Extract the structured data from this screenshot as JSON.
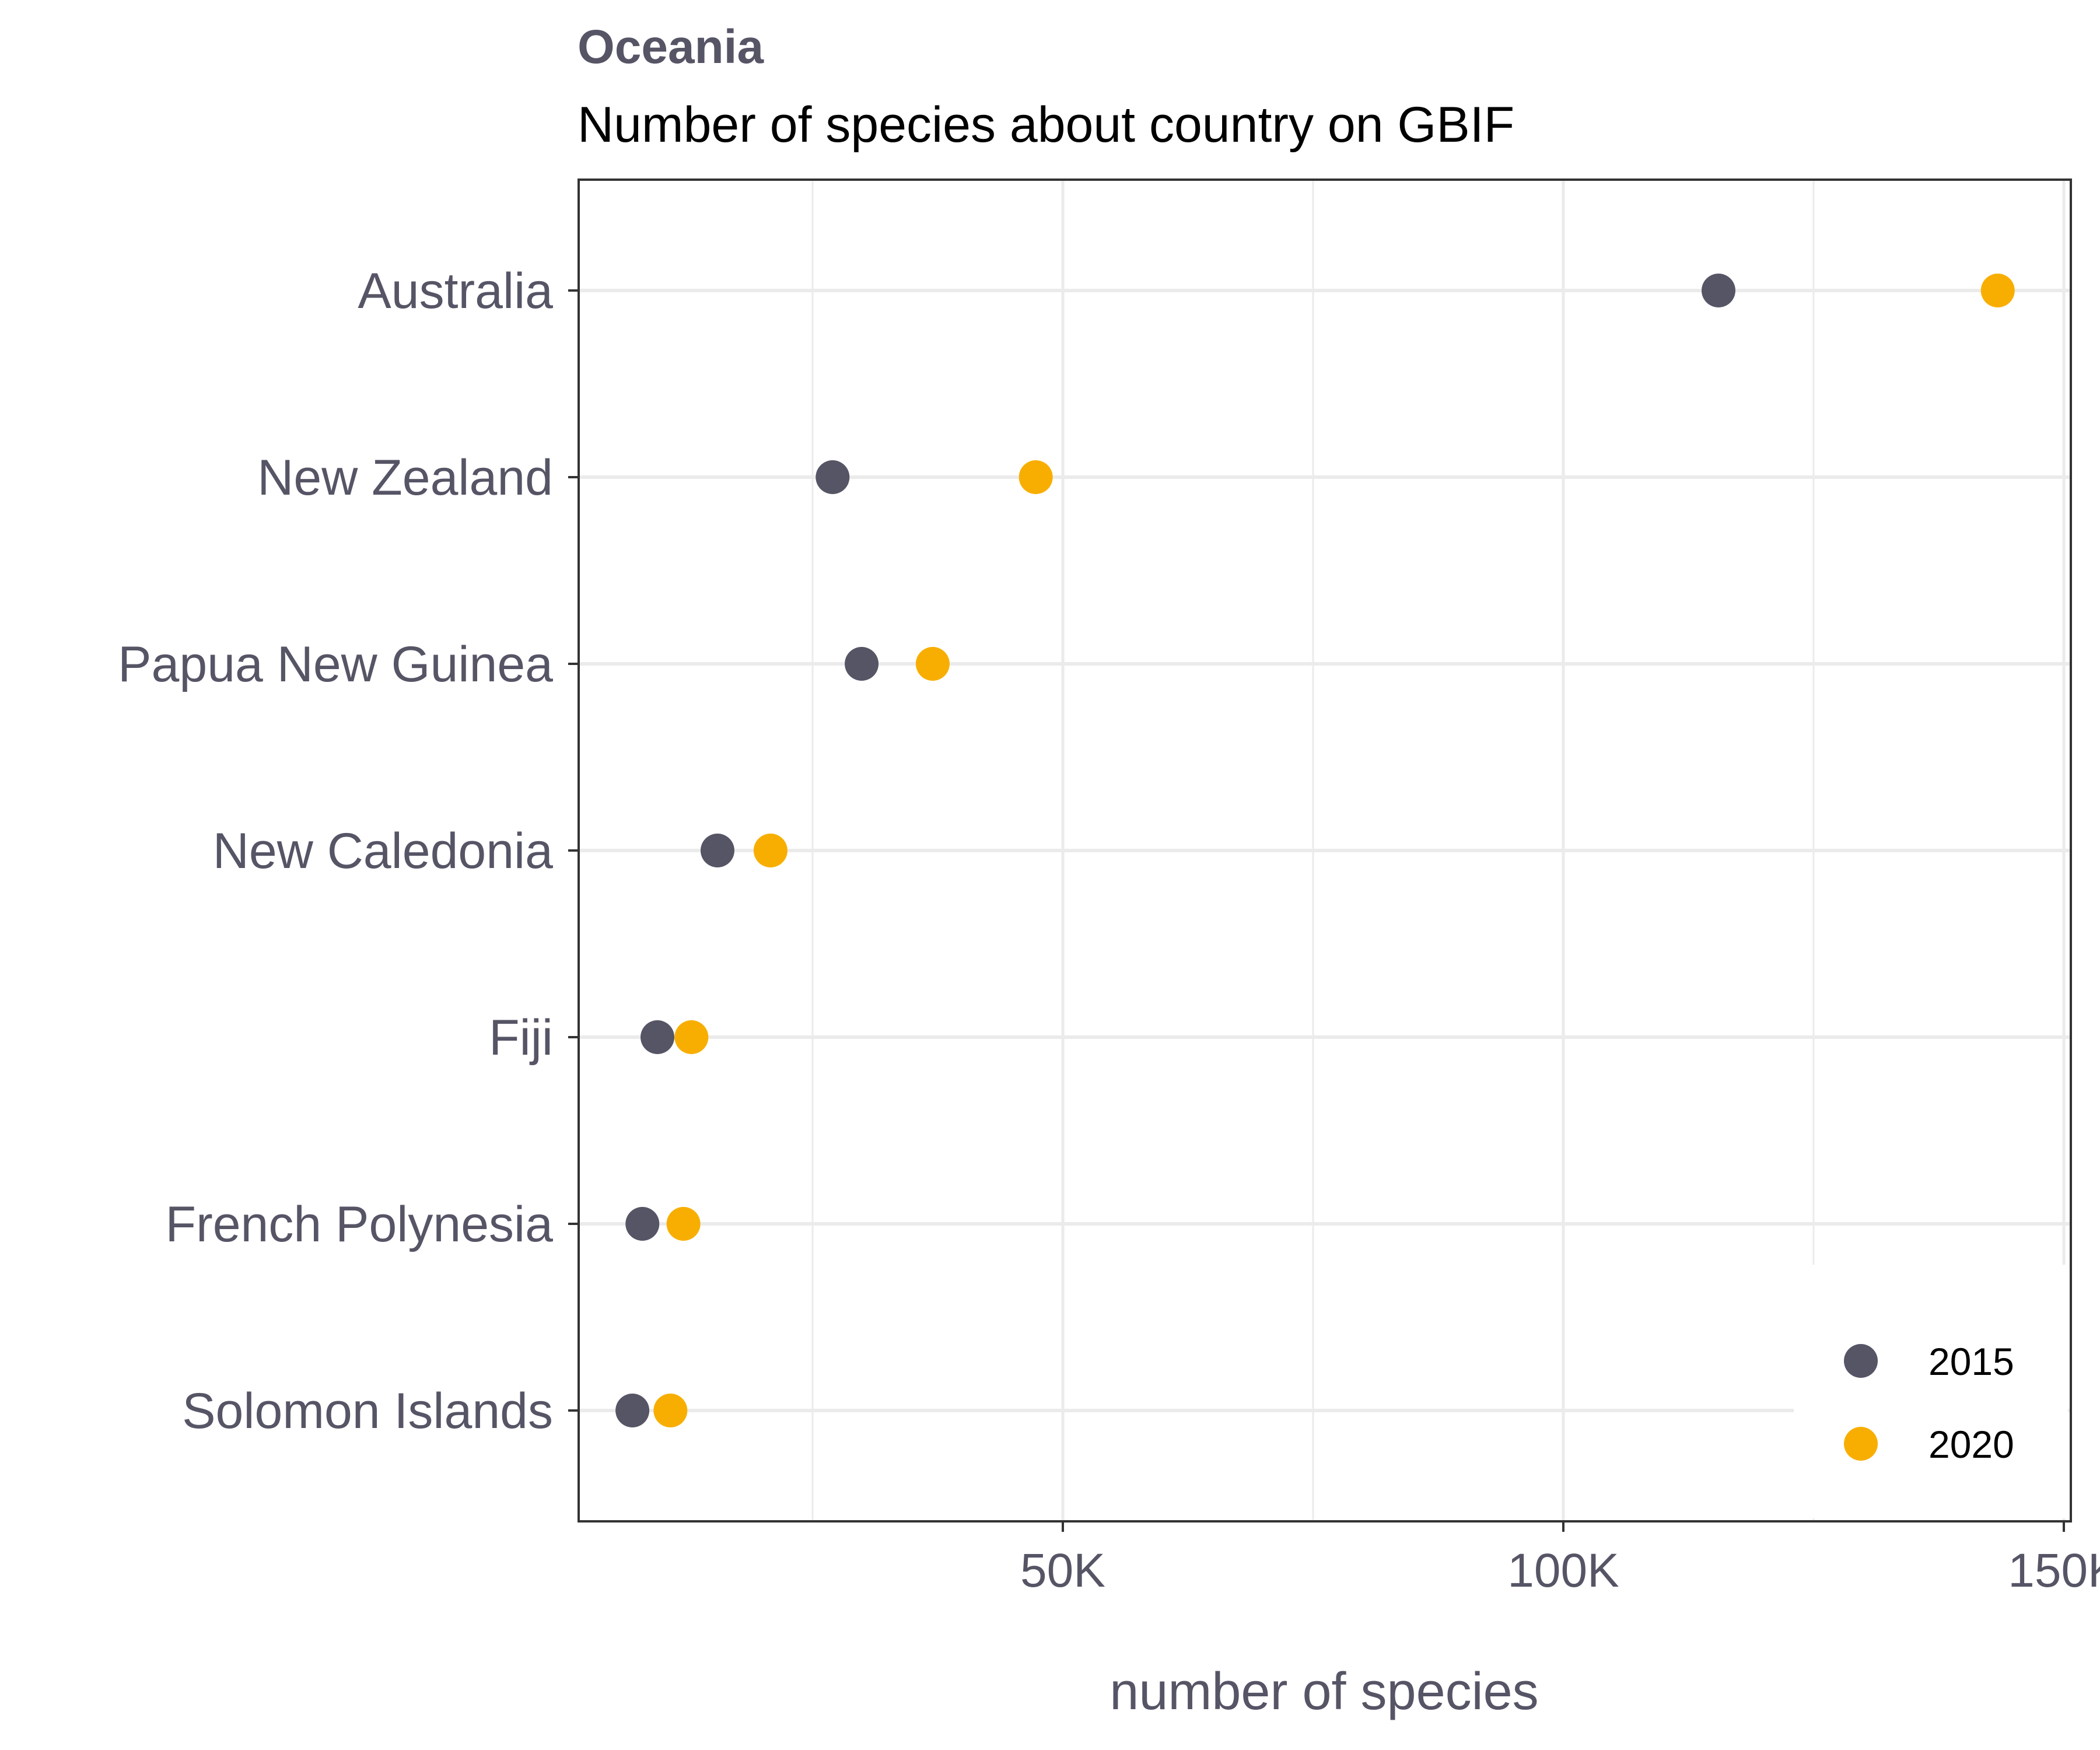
{
  "chart_data": {
    "type": "scatter",
    "title": "Oceania",
    "subtitle": "Number of species about country on GBIF",
    "xlabel": "number of species",
    "ylabel": "",
    "xlim": [
      3000,
      150000
    ],
    "xticks": [
      {
        "value": 50000,
        "label": "50K"
      },
      {
        "value": 100000,
        "label": "100K"
      },
      {
        "value": 150000,
        "label": "150K"
      }
    ],
    "categories": [
      "Australia",
      "New Zealand",
      "Papua New Guinea",
      "New Caledonia",
      "Fiji",
      "French Polynesia",
      "Solomon Islands"
    ],
    "series": [
      {
        "name": "2015",
        "color": "#555566",
        "values": [
          115500,
          27000,
          29900,
          15500,
          9500,
          8000,
          7000
        ]
      },
      {
        "name": "2020",
        "color": "#F8AE00",
        "values": [
          143400,
          47300,
          37000,
          20800,
          12900,
          12100,
          10800
        ]
      }
    ],
    "grid": true,
    "legend_position": "bottom-right"
  }
}
